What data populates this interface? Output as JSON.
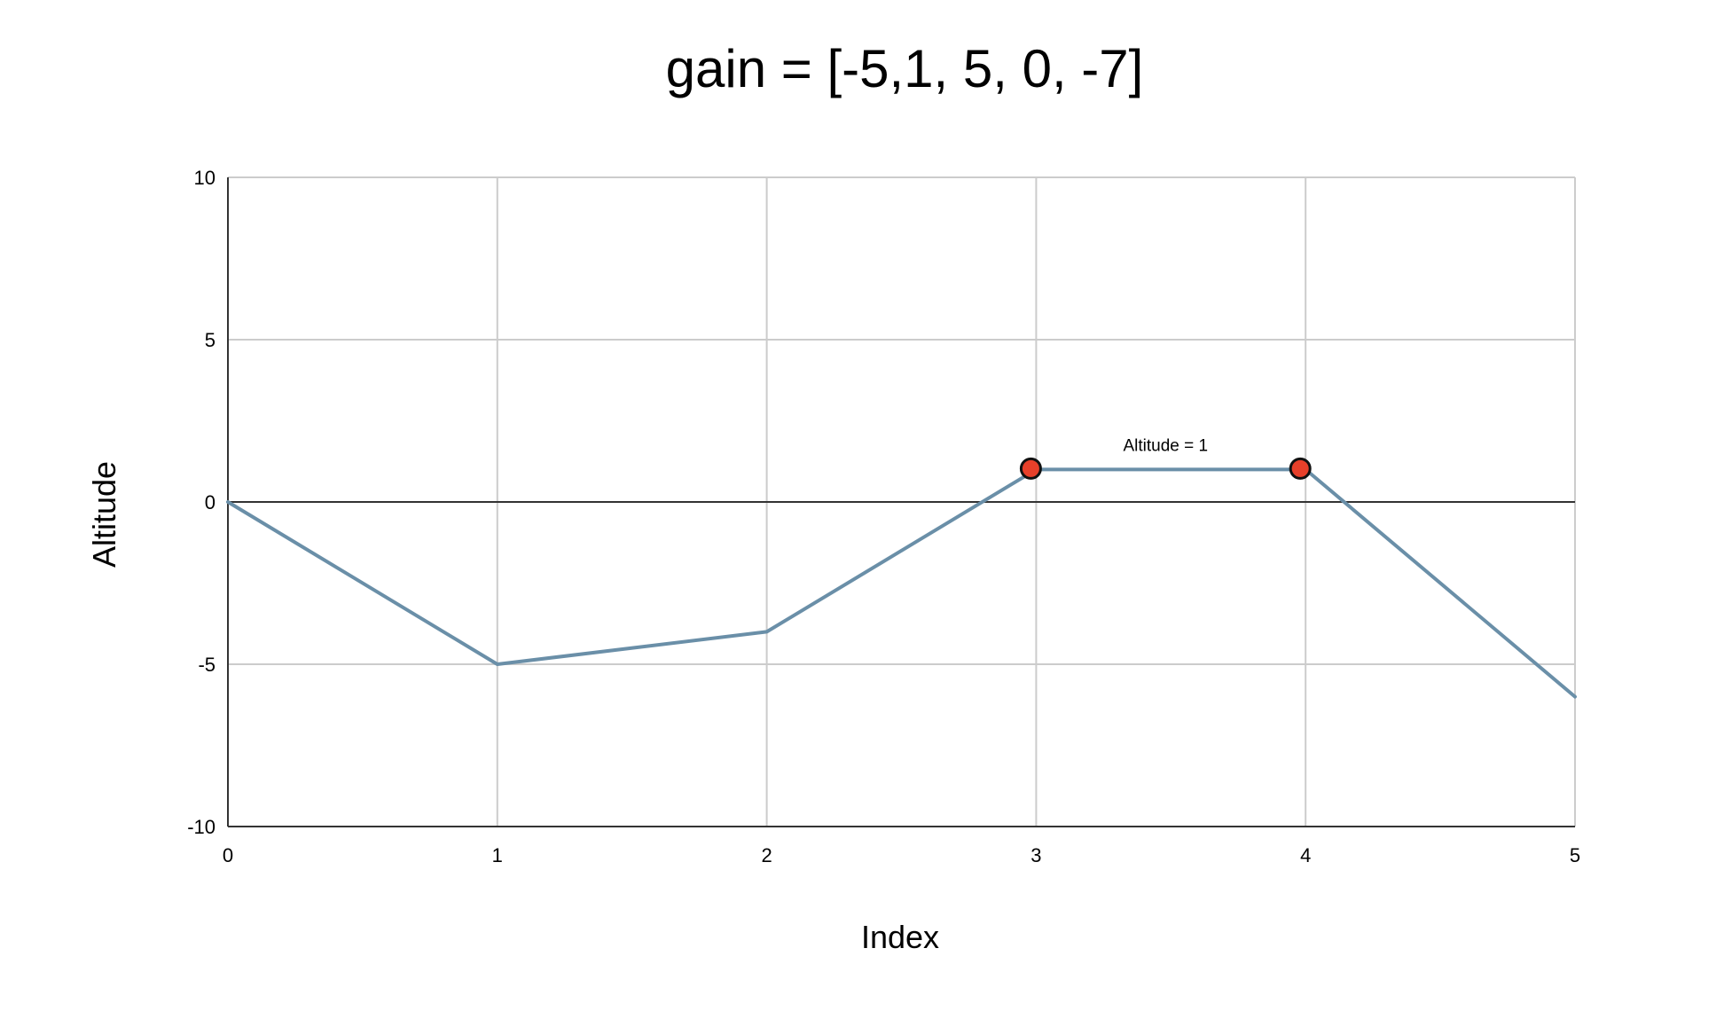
{
  "chart_data": {
    "type": "line",
    "title": "gain = [-5,1, 5, 0, -7]",
    "xlabel": "Index",
    "ylabel": "Altitude",
    "x": [
      0,
      1,
      2,
      3,
      4,
      5
    ],
    "series": [
      {
        "values": [
          0,
          -5,
          -4,
          1,
          1,
          -6
        ],
        "color": "#6a8fa8"
      }
    ],
    "xlim": [
      0,
      5
    ],
    "ylim": [
      -10,
      10
    ],
    "x_ticks": [
      "0",
      "1",
      "2",
      "3",
      "4",
      "5"
    ],
    "y_ticks": [
      "10",
      "5",
      "0",
      "-5",
      "-10"
    ],
    "grid": true,
    "highlighted_points": [
      {
        "x": 3,
        "y": 1
      },
      {
        "x": 4,
        "y": 1
      }
    ],
    "marker_color": "#e8402a",
    "annotation": {
      "text": "Altitude = 1",
      "x": 3.5,
      "y": 1
    }
  }
}
